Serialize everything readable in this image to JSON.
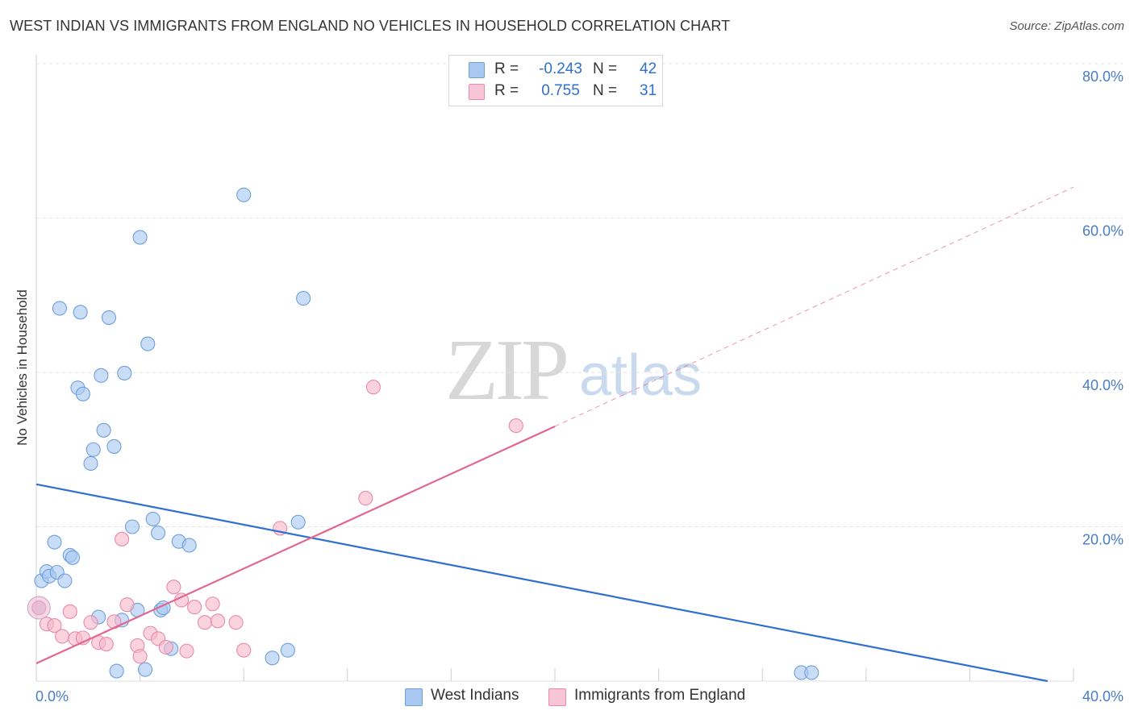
{
  "header": {
    "title": "WEST INDIAN VS IMMIGRANTS FROM ENGLAND NO VEHICLES IN HOUSEHOLD CORRELATION CHART",
    "source": "Source: ZipAtlas.com"
  },
  "watermark": {
    "zip": "ZIP",
    "atlas": "atlas"
  },
  "legend": {
    "rows": [
      {
        "label": "R =",
        "r_value": "-0.243",
        "n_label": "N =",
        "n_value": "42",
        "color": "#a9c8f0"
      },
      {
        "label": "R =",
        "r_value": "0.755",
        "n_label": "N =",
        "n_value": "31",
        "color": "#f7b8cc"
      }
    ]
  },
  "bottom_legend": {
    "items": [
      {
        "label": "West Indians",
        "color": "#a9c8f0"
      },
      {
        "label": "Immigrants from England",
        "color": "#f7b8cc"
      }
    ]
  },
  "chart_data": {
    "type": "scatter",
    "title": "WEST INDIAN VS IMMIGRANTS FROM ENGLAND NO VEHICLES IN HOUSEHOLD CORRELATION CHART",
    "ylabel": "No Vehicles in Household",
    "xlabel": "",
    "xlim": [
      0,
      40
    ],
    "ylim": [
      0,
      80
    ],
    "x_ticks": [
      {
        "value": 0,
        "label": "0.0%"
      },
      {
        "value": 40,
        "label": "40.0%"
      }
    ],
    "y_ticks": [
      {
        "value": 20,
        "label": "20.0%"
      },
      {
        "value": 40,
        "label": "40.0%"
      },
      {
        "value": 60,
        "label": "60.0%"
      },
      {
        "value": 80,
        "label": "80.0%"
      }
    ],
    "grid": true,
    "legend_position": "top-center",
    "series": [
      {
        "name": "West Indians",
        "color": "#a9c8f0",
        "stroke": "#6e9fdc",
        "trend_color": "#2f6fd0",
        "trend": {
          "x0": 0,
          "y0": 25.5,
          "x1": 39,
          "y1": 0
        },
        "points": [
          [
            0.1,
            9.5
          ],
          [
            0.2,
            13.0
          ],
          [
            0.4,
            14.2
          ],
          [
            0.5,
            13.6
          ],
          [
            0.7,
            18.0
          ],
          [
            0.8,
            14.1
          ],
          [
            0.9,
            48.3
          ],
          [
            1.1,
            13.0
          ],
          [
            1.3,
            16.3
          ],
          [
            1.4,
            16.0
          ],
          [
            1.6,
            38.0
          ],
          [
            1.7,
            47.8
          ],
          [
            1.8,
            37.2
          ],
          [
            2.1,
            28.2
          ],
          [
            2.2,
            30.0
          ],
          [
            2.4,
            8.3
          ],
          [
            2.5,
            39.6
          ],
          [
            2.6,
            32.5
          ],
          [
            2.8,
            47.1
          ],
          [
            3.0,
            30.4
          ],
          [
            3.1,
            1.3
          ],
          [
            3.3,
            7.9
          ],
          [
            3.4,
            39.9
          ],
          [
            3.7,
            20.0
          ],
          [
            3.9,
            9.2
          ],
          [
            4.0,
            57.5
          ],
          [
            4.2,
            1.5
          ],
          [
            4.3,
            43.7
          ],
          [
            4.5,
            21.0
          ],
          [
            4.7,
            19.2
          ],
          [
            4.8,
            9.2
          ],
          [
            4.9,
            9.5
          ],
          [
            5.2,
            4.2
          ],
          [
            5.5,
            18.1
          ],
          [
            5.9,
            17.6
          ],
          [
            8.0,
            63.0
          ],
          [
            9.1,
            3.0
          ],
          [
            9.7,
            4.0
          ],
          [
            10.1,
            20.6
          ],
          [
            10.3,
            49.6
          ],
          [
            29.5,
            1.1
          ],
          [
            29.9,
            1.1
          ]
        ]
      },
      {
        "name": "Immigrants from England",
        "color": "#f7b8cc",
        "stroke": "#e98aa8",
        "trend_color": "#e06890",
        "trend": {
          "x0": 0,
          "y0": 2.3,
          "x1": 20,
          "y1": 33.0
        },
        "trend_extension": {
          "x0": 20,
          "y0": 33.0,
          "x1": 40,
          "y1": 64.0
        },
        "points": [
          [
            0.1,
            9.5
          ],
          [
            0.4,
            7.4
          ],
          [
            0.7,
            7.2
          ],
          [
            1.0,
            5.8
          ],
          [
            1.3,
            9.0
          ],
          [
            1.5,
            5.5
          ],
          [
            1.8,
            5.6
          ],
          [
            2.1,
            7.6
          ],
          [
            2.4,
            5.0
          ],
          [
            2.7,
            4.8
          ],
          [
            3.0,
            7.7
          ],
          [
            3.3,
            18.4
          ],
          [
            3.5,
            9.9
          ],
          [
            3.9,
            4.6
          ],
          [
            4.0,
            3.2
          ],
          [
            4.4,
            6.2
          ],
          [
            4.7,
            5.5
          ],
          [
            5.0,
            4.4
          ],
          [
            5.3,
            12.2
          ],
          [
            5.6,
            10.5
          ],
          [
            5.8,
            3.9
          ],
          [
            6.1,
            9.6
          ],
          [
            6.5,
            7.6
          ],
          [
            6.8,
            10.0
          ],
          [
            7.0,
            7.8
          ],
          [
            7.7,
            7.6
          ],
          [
            8.0,
            4.0
          ],
          [
            9.4,
            19.8
          ],
          [
            12.7,
            23.7
          ],
          [
            13.0,
            38.1
          ],
          [
            18.5,
            33.1
          ]
        ]
      }
    ]
  }
}
